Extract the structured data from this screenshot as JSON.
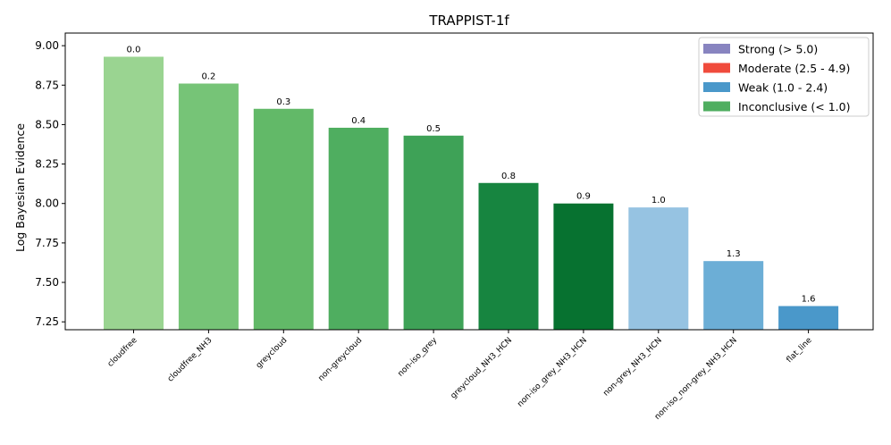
{
  "chart_data": {
    "type": "bar",
    "title": "TRAPPIST-1f",
    "ylabel": "Log Bayesian Evidence",
    "xlabel": "",
    "ylim": [
      7.2,
      9.08
    ],
    "yticks": [
      "7.25",
      "7.50",
      "7.75",
      "8.00",
      "8.25",
      "8.50",
      "8.75",
      "9.00"
    ],
    "categories": [
      "cloudfree",
      "cloudfree_NH3",
      "greycloud",
      "non-greycloud",
      "non-iso_grey",
      "greycloud_NH3_HCN",
      "non-iso_grey_NH3_HCN",
      "non-grey_NH3_HCN",
      "non-iso_non-grey_NH3_HCN",
      "flat_line"
    ],
    "values": [
      8.93,
      8.76,
      8.6,
      8.48,
      8.43,
      8.13,
      8.0,
      7.975,
      7.635,
      7.35
    ],
    "data_labels": [
      "0.0",
      "0.2",
      "0.3",
      "0.4",
      "0.5",
      "0.8",
      "0.9",
      "1.0",
      "1.3",
      "1.6"
    ],
    "bar_colors": [
      "#9ad491",
      "#76c477",
      "#62b968",
      "#4fae60",
      "#3ea257",
      "#178540",
      "#077230",
      "#96c3e2",
      "#6caed6",
      "#4a98ca"
    ],
    "grid": false,
    "legend": {
      "placement": "top-right",
      "entries": [
        {
          "label": "Strong (> 5.0)",
          "color": "#8884c0"
        },
        {
          "label": "Moderate (2.5 - 4.9)",
          "color": "#f04b3c"
        },
        {
          "label": "Weak (1.0 - 2.4)",
          "color": "#4a98ca"
        },
        {
          "label": "Inconclusive (< 1.0)",
          "color": "#4fae60"
        }
      ]
    }
  }
}
